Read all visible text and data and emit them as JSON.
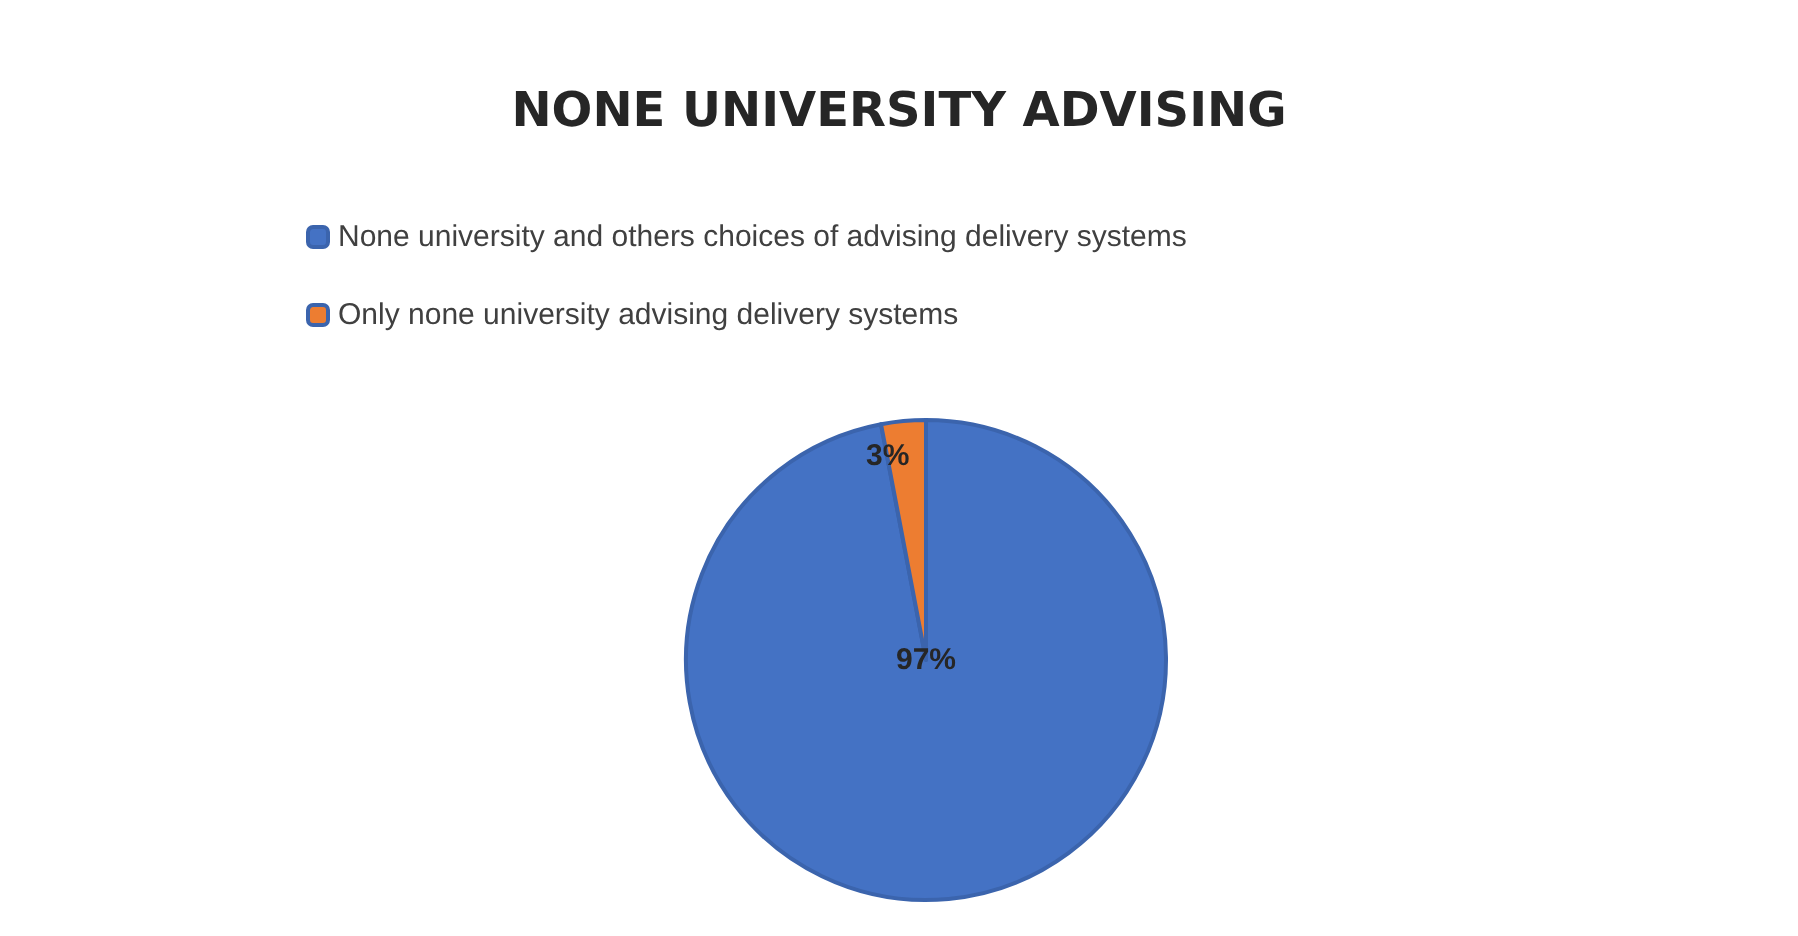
{
  "chart_data": {
    "type": "pie",
    "title": "NONE UNIVERSITY ADVISING",
    "categories": [
      "None university and others choices of advising delivery systems",
      "Only none university advising delivery systems"
    ],
    "values": [
      97,
      3
    ],
    "colors": [
      "#4472c4",
      "#ed7d31"
    ],
    "value_labels": [
      "97%",
      "3%"
    ],
    "legend": "top left"
  }
}
